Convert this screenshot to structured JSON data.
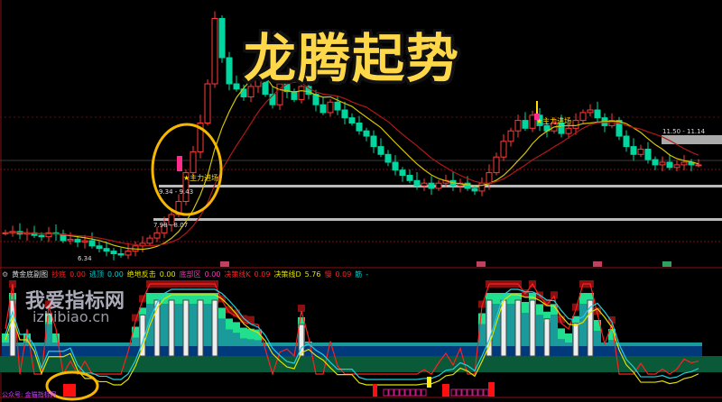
{
  "overlay_title": "龙腾起势",
  "watermark": {
    "line1": "我爱指标网",
    "line2": "izhibiao.cn"
  },
  "footer_label": "公众号: 金猫指标网",
  "markers": {
    "entry1": "★主力进场",
    "entry2": "★主力进场"
  },
  "price_labels": {
    "low": "6.34",
    "zone1": "7.98 - 8.07",
    "zone2": "9.34 - 9.43",
    "zone3": "11.50 - 11.14"
  },
  "indicator_legend": {
    "name": "黄金底副图",
    "items": [
      {
        "label": "抄底",
        "value": "0.00",
        "color": "#ff2020"
      },
      {
        "label": "逃顶",
        "value": "0.00",
        "color": "#00d0d0"
      },
      {
        "label": "绝地反击",
        "value": "0.00",
        "color": "#e0e000"
      },
      {
        "label": "底部区",
        "value": "0.00",
        "color": "#ff30c0"
      },
      {
        "label": "决策线K",
        "value": "0.09",
        "color": "#ff2020"
      },
      {
        "label": "决策线D",
        "value": "5.76",
        "color": "#e0e000"
      },
      {
        "label": "慢",
        "value": "0.09",
        "color": "#ff2020"
      },
      {
        "label": "筋",
        "value": "-",
        "color": "#00d0d0"
      }
    ]
  },
  "colors": {
    "up": "#ff3b3b",
    "down": "#00d7a0",
    "ma_fast": "#d4c400",
    "ma_slow": "#b01818",
    "highlight": "#f5b800"
  },
  "chart_data": {
    "type": "candlestick",
    "close": [
      7.3,
      7.35,
      7.25,
      7.3,
      7.2,
      7.15,
      7.3,
      7.25,
      7.0,
      7.05,
      6.95,
      7.0,
      6.8,
      6.7,
      6.6,
      6.5,
      6.45,
      6.6,
      6.8,
      6.9,
      7.1,
      7.3,
      7.6,
      8.0,
      8.5,
      9.6,
      10.4,
      11.5,
      13.0,
      15.5,
      14.0,
      13.0,
      12.8,
      12.5,
      12.9,
      13.2,
      12.6,
      12.2,
      13.0,
      12.7,
      12.4,
      12.9,
      12.6,
      12.2,
      11.9,
      12.3,
      12.0,
      11.7,
      11.5,
      11.2,
      11.0,
      10.6,
      10.3,
      10.0,
      9.7,
      9.5,
      9.3,
      9.1,
      9.2,
      9.0,
      9.2,
      9.3,
      9.1,
      9.2,
      9.0,
      8.9,
      9.2,
      9.6,
      10.2,
      10.8,
      11.2,
      11.6,
      11.3,
      11.8,
      11.4,
      11.2,
      11.5,
      11.1,
      11.3,
      11.6,
      11.9,
      12.0,
      11.7,
      11.4,
      11.6,
      11.0,
      10.6,
      10.3,
      10.5,
      10.1,
      9.9,
      10.0,
      9.8,
      9.9,
      10.0,
      9.9,
      9.9
    ],
    "moving_averages": [
      "fast",
      "slow"
    ],
    "zones": [
      [
        7.98,
        8.07
      ],
      [
        9.34,
        9.43
      ],
      [
        11.14,
        11.5
      ]
    ],
    "low_label": 6.34
  }
}
